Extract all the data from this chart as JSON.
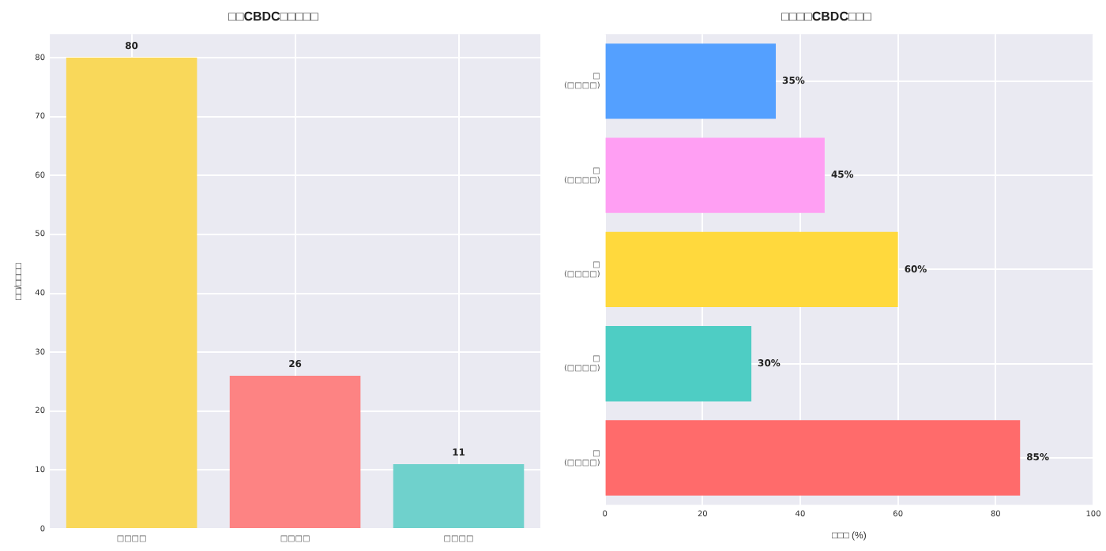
{
  "chart_data": [
    {
      "type": "bar",
      "title": "□□CBDC□□□□□",
      "ylabel": "□□/□□□□",
      "categories": [
        "□□□□",
        "□□□□",
        "□□□□"
      ],
      "values": [
        80,
        26,
        11
      ],
      "colors": [
        "#f9d85a",
        "#fd8383",
        "#6fd1cc"
      ],
      "ylim": [
        0,
        84
      ],
      "yticks": [
        0,
        10,
        20,
        30,
        40,
        50,
        60,
        70,
        80
      ],
      "grid": true,
      "legend": false,
      "data_labels": true
    },
    {
      "type": "bar",
      "orientation": "horizontal",
      "title": "□□□□CBDC□□□",
      "xlabel": "□□□ (%)",
      "categories": [
        "□\n(□□□□)",
        "□\n(□□□□)",
        "□\n(□□□□)",
        "□\n(□□□□)",
        "□\n(□□□□)"
      ],
      "values": [
        35,
        45,
        60,
        30,
        85
      ],
      "colors": [
        "#54a0ff",
        "#ff9ff3",
        "#ffd93d",
        "#4ecdc4",
        "#ff6b6b"
      ],
      "value_labels": [
        "35%",
        "45%",
        "60%",
        "30%",
        "85%"
      ],
      "xlim": [
        0,
        100
      ],
      "xticks": [
        0,
        20,
        40,
        60,
        80,
        100
      ],
      "grid": true,
      "legend": false
    }
  ]
}
